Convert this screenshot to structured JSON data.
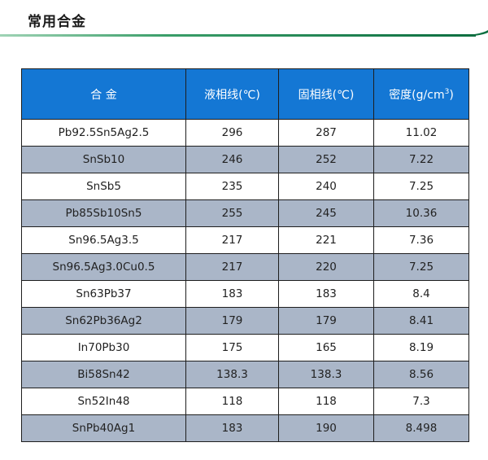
{
  "header": {
    "title": "常用合金"
  },
  "colors": {
    "header_bg": "#1477d4",
    "row_alt": "#aab6c8",
    "row_plain": "#ffffff",
    "bar_green": "#0f7d4a"
  },
  "table": {
    "columns": [
      "合 金",
      "液相线(℃)",
      "固相线(℃)",
      "密度(g/cm",
      "3",
      ")"
    ],
    "rows": [
      [
        "Pb92.5Sn5Ag2.5",
        "296",
        "287",
        "11.02"
      ],
      [
        "SnSb10",
        "246",
        "252",
        "7.22"
      ],
      [
        "SnSb5",
        "235",
        "240",
        "7.25"
      ],
      [
        "Pb85Sb10Sn5",
        "255",
        "245",
        "10.36"
      ],
      [
        "Sn96.5Ag3.5",
        "217",
        "221",
        "7.36"
      ],
      [
        "Sn96.5Ag3.0Cu0.5",
        "217",
        "220",
        "7.25"
      ],
      [
        "Sn63Pb37",
        "183",
        "183",
        "8.4"
      ],
      [
        "Sn62Pb36Ag2",
        "179",
        "179",
        "8.41"
      ],
      [
        "In70Pb30",
        "175",
        "165",
        "8.19"
      ],
      [
        "Bi58Sn42",
        "138.3",
        "138.3",
        "8.56"
      ],
      [
        "Sn52In48",
        "118",
        "118",
        "7.3"
      ],
      [
        "SnPb40Ag1",
        "183",
        "190",
        "8.498"
      ]
    ]
  }
}
